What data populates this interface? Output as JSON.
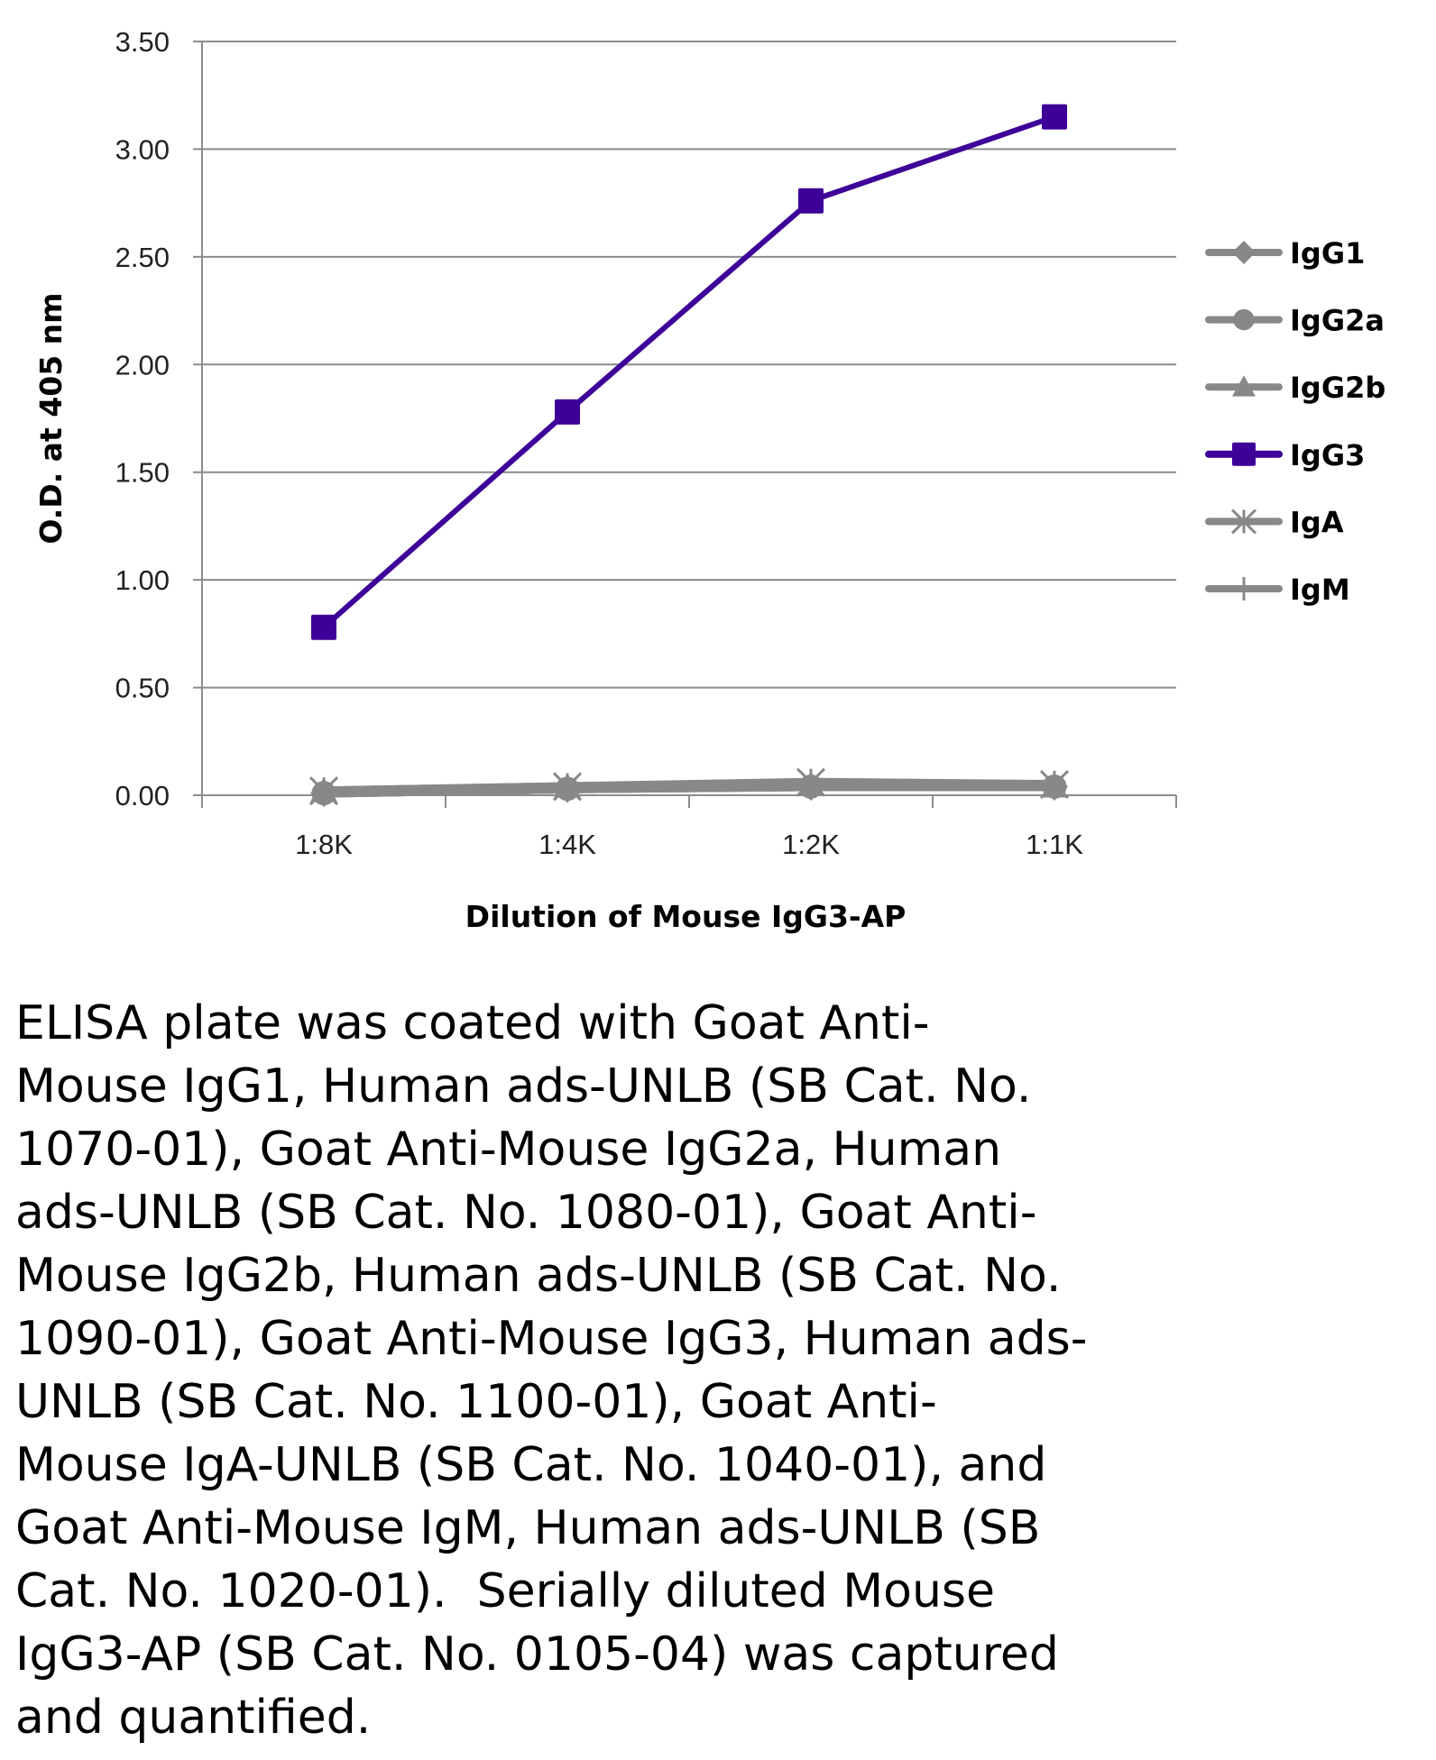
{
  "chart_data": {
    "type": "line",
    "title": "",
    "xlabel": "Dilution of Mouse IgG3-AP",
    "ylabel": "O.D. at 405 nm",
    "categories": [
      "1:8K",
      "1:4K",
      "1:2K",
      "1:1K"
    ],
    "ylim": [
      0,
      3.5
    ],
    "yticks": [
      "0.00",
      "0.50",
      "1.00",
      "1.50",
      "2.00",
      "2.50",
      "3.00",
      "3.50"
    ],
    "grid": true,
    "legend_position": "right",
    "series": [
      {
        "name": "IgG1",
        "marker": "diamond",
        "color": "#888888",
        "values": [
          0.01,
          0.03,
          0.04,
          0.04
        ]
      },
      {
        "name": "IgG2a",
        "marker": "circle",
        "color": "#888888",
        "values": [
          0.01,
          0.03,
          0.04,
          0.04
        ]
      },
      {
        "name": "IgG2b",
        "marker": "triangle",
        "color": "#888888",
        "values": [
          0.02,
          0.04,
          0.05,
          0.04
        ]
      },
      {
        "name": "IgG3",
        "marker": "square",
        "color": "#3d0099",
        "values": [
          0.78,
          1.78,
          2.76,
          3.15
        ]
      },
      {
        "name": "IgA",
        "marker": "star",
        "color": "#888888",
        "values": [
          0.02,
          0.04,
          0.06,
          0.05
        ]
      },
      {
        "name": "IgM",
        "marker": "plus",
        "color": "#888888",
        "values": [
          0.01,
          0.03,
          0.04,
          0.04
        ]
      }
    ]
  },
  "caption": "ELISA plate was coated with Goat Anti-\nMouse IgG1, Human ads-UNLB (SB Cat. No.\n1070-01), Goat Anti-Mouse IgG2a, Human\nads-UNLB (SB Cat. No. 1080-01), Goat Anti-\nMouse IgG2b, Human ads-UNLB (SB Cat. No.\n1090-01), Goat Anti-Mouse IgG3, Human ads-\nUNLB (SB Cat. No. 1100-01), Goat Anti-\nMouse IgA-UNLB (SB Cat. No. 1040-01), and\nGoat Anti-Mouse IgM, Human ads-UNLB (SB\nCat. No. 1020-01).  Serially diluted Mouse\nIgG3-AP (SB Cat. No. 0105-04) was captured\nand quantified."
}
